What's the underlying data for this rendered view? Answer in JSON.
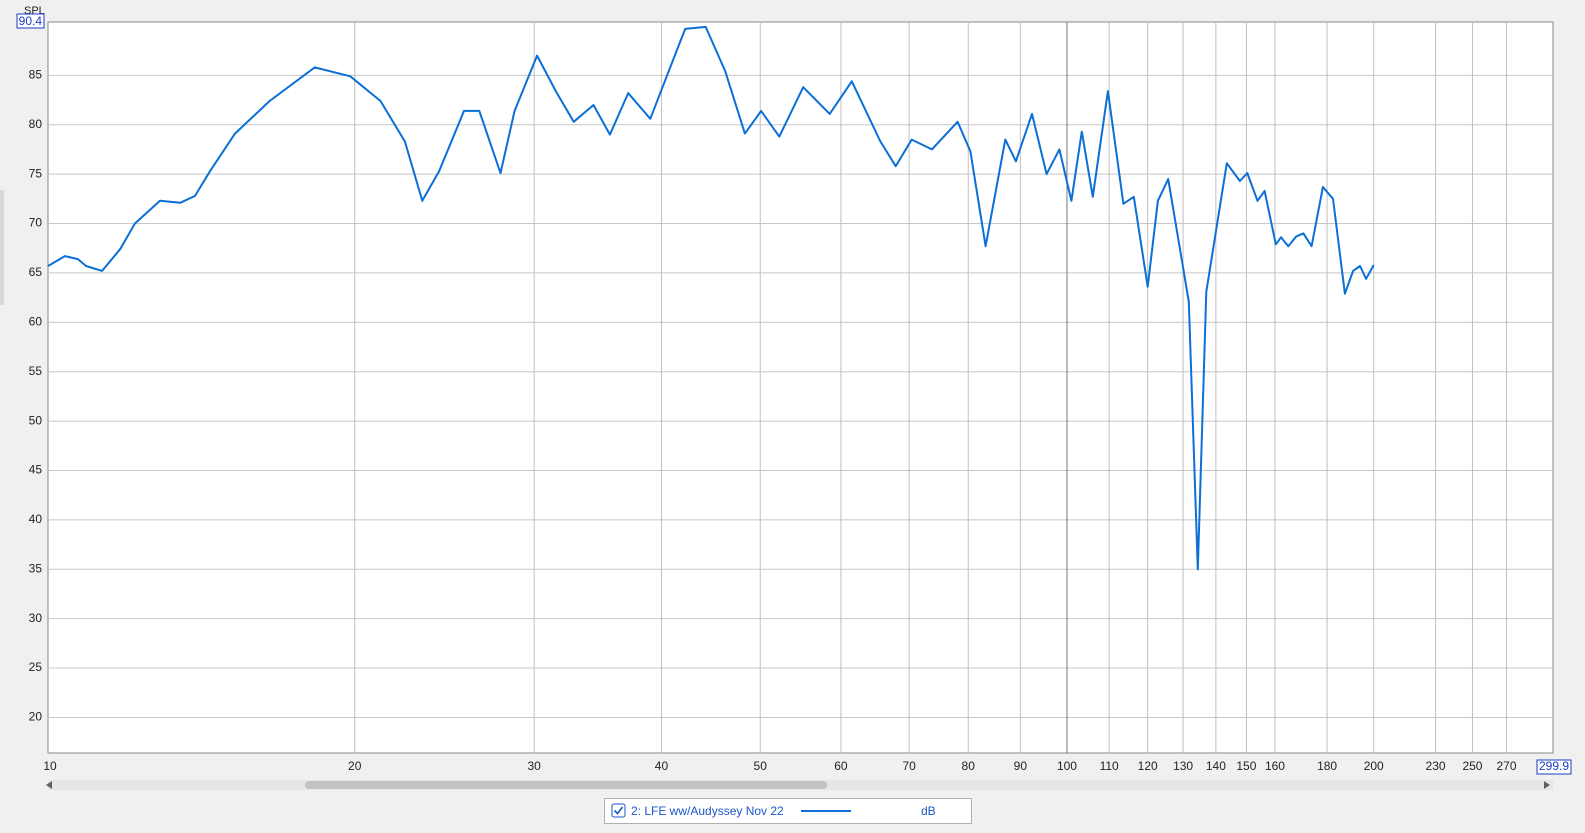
{
  "chart_data": {
    "type": "line",
    "y_label": "SPL",
    "log_x": true,
    "grid": true,
    "xlim": [
      10,
      299.9
    ],
    "ylim": [
      16.4,
      90.4
    ],
    "xticks": [
      10,
      20,
      30,
      40,
      50,
      60,
      70,
      80,
      90,
      100,
      110,
      120,
      130,
      140,
      150,
      160,
      180,
      200,
      230,
      250,
      270,
      299.9
    ],
    "yticks": [
      20,
      25,
      30,
      35,
      40,
      45,
      50,
      55,
      60,
      65,
      70,
      75,
      80,
      85,
      90.4
    ],
    "unit": "dB",
    "series": [
      {
        "name": "2: LFE ww/Audyssey Nov 22",
        "color": "#0b6fd6",
        "x": [
          10,
          10.39,
          10.7,
          10.9,
          11.3,
          11.77,
          12.17,
          12.88,
          13.48,
          13.94,
          14.42,
          15.26,
          16.5,
          18.27,
          19.8,
          21.2,
          22.4,
          23.3,
          24.2,
          25.6,
          26.5,
          27.8,
          28.7,
          30.2,
          31.5,
          32.8,
          34.3,
          35.6,
          37.1,
          39.0,
          40.3,
          42.2,
          44.2,
          46.2,
          48.3,
          50.1,
          52.2,
          55.1,
          58.5,
          61.5,
          65.6,
          67.9,
          70.4,
          73.7,
          78.1,
          80.4,
          83.2,
          87.0,
          89.1,
          92.4,
          95.5,
          98.3,
          101,
          103.4,
          106,
          109.7,
          113.6,
          116.3,
          120,
          122.8,
          125.7,
          131.7,
          134.4,
          137.0,
          143.5,
          147.8,
          150.3,
          153.8,
          156.3,
          160.3,
          162.2,
          164.9,
          167.9,
          170.6,
          173.8,
          178.3,
          182.4,
          187.4,
          190.9,
          193.9,
          196.6,
          200
        ],
        "values": [
          65.7,
          66.7,
          66.4,
          65.7,
          65.2,
          67.4,
          70.0,
          72.3,
          72.1,
          72.8,
          75.3,
          79.1,
          82.4,
          85.8,
          84.9,
          82.4,
          78.3,
          72.3,
          75.3,
          81.4,
          81.4,
          75.1,
          81.4,
          87.0,
          83.4,
          80.3,
          82.0,
          79.0,
          83.2,
          80.6,
          84.4,
          89.7,
          89.9,
          85.4,
          79.1,
          81.4,
          78.8,
          83.8,
          81.1,
          84.4,
          78.3,
          75.8,
          78.5,
          77.5,
          80.3,
          77.3,
          67.7,
          78.5,
          76.3,
          81.1,
          75.0,
          77.5,
          72.3,
          79.3,
          72.7,
          83.4,
          72.0,
          72.7,
          63.6,
          72.3,
          74.5,
          62.1,
          35.0,
          63.1,
          76.1,
          74.3,
          75.1,
          72.3,
          73.3,
          67.9,
          68.6,
          67.7,
          68.7,
          69.0,
          67.7,
          73.7,
          72.5,
          62.9,
          65.2,
          65.7,
          64.4,
          65.8
        ]
      }
    ]
  }
}
